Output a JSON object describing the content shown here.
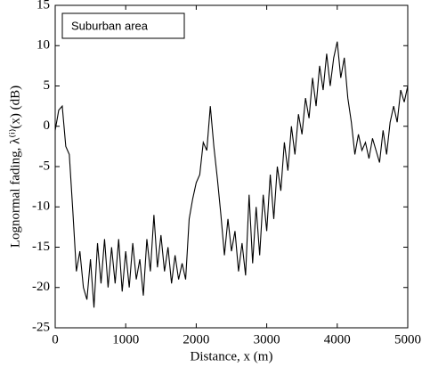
{
  "chart_data": {
    "type": "line",
    "xlabel": "Distance, x (m)",
    "ylabel": "Lognormal fading, λ⁽ⁱ⁾(x) (dB)",
    "xlim": [
      0,
      5000
    ],
    "xticks": [
      0,
      1000,
      2000,
      3000,
      4000,
      5000
    ],
    "ylim": [
      -25,
      15
    ],
    "yticks": [
      -25,
      -20,
      -15,
      -10,
      -5,
      0,
      5,
      10,
      15
    ],
    "legend": "upper left",
    "series": [
      {
        "name": "Suburban area",
        "color": "#000000",
        "x": [
          0,
          50,
          100,
          150,
          200,
          250,
          300,
          350,
          400,
          450,
          500,
          550,
          600,
          650,
          700,
          750,
          800,
          850,
          900,
          950,
          1000,
          1050,
          1100,
          1150,
          1200,
          1250,
          1300,
          1350,
          1400,
          1450,
          1500,
          1550,
          1600,
          1650,
          1700,
          1750,
          1800,
          1850,
          1900,
          1950,
          2000,
          2050,
          2100,
          2150,
          2200,
          2250,
          2300,
          2350,
          2400,
          2450,
          2500,
          2550,
          2600,
          2650,
          2700,
          2750,
          2800,
          2850,
          2900,
          2950,
          3000,
          3050,
          3100,
          3150,
          3200,
          3250,
          3300,
          3350,
          3400,
          3450,
          3500,
          3550,
          3600,
          3650,
          3700,
          3750,
          3800,
          3850,
          3900,
          3950,
          4000,
          4050,
          4100,
          4150,
          4200,
          4250,
          4300,
          4350,
          4400,
          4450,
          4500,
          4550,
          4600,
          4650,
          4700,
          4750,
          4800,
          4850,
          4900,
          4950,
          5000
        ],
        "values": [
          -0.5,
          2.0,
          2.5,
          -2.5,
          -3.5,
          -10.5,
          -18.0,
          -15.5,
          -20.0,
          -21.5,
          -16.5,
          -22.5,
          -14.5,
          -19.5,
          -14.0,
          -20.0,
          -15.0,
          -19.5,
          -14.0,
          -20.5,
          -15.5,
          -20.0,
          -14.5,
          -19.0,
          -16.5,
          -21.0,
          -14.0,
          -18.0,
          -11.0,
          -17.5,
          -13.5,
          -18.0,
          -15.0,
          -19.5,
          -16.0,
          -19.0,
          -17.0,
          -19.0,
          -11.5,
          -9.0,
          -7.0,
          -6.0,
          -2.0,
          -3.0,
          2.5,
          -2.5,
          -6.5,
          -11.0,
          -16.0,
          -11.5,
          -15.5,
          -13.0,
          -18.0,
          -14.5,
          -18.5,
          -8.5,
          -17.0,
          -10.0,
          -16.0,
          -8.5,
          -13.0,
          -6.0,
          -11.5,
          -5.0,
          -8.0,
          -2.0,
          -5.5,
          0.0,
          -3.5,
          1.5,
          -1.0,
          3.5,
          1.0,
          6.0,
          2.5,
          7.5,
          4.5,
          9.0,
          5.0,
          8.5,
          10.5,
          6.0,
          8.5,
          3.5,
          0.5,
          -3.5,
          -1.0,
          -3.0,
          -2.0,
          -4.0,
          -1.5,
          -3.0,
          -4.5,
          -0.5,
          -3.5,
          0.5,
          2.5,
          0.5,
          4.5,
          3.0,
          5.0
        ]
      }
    ]
  }
}
